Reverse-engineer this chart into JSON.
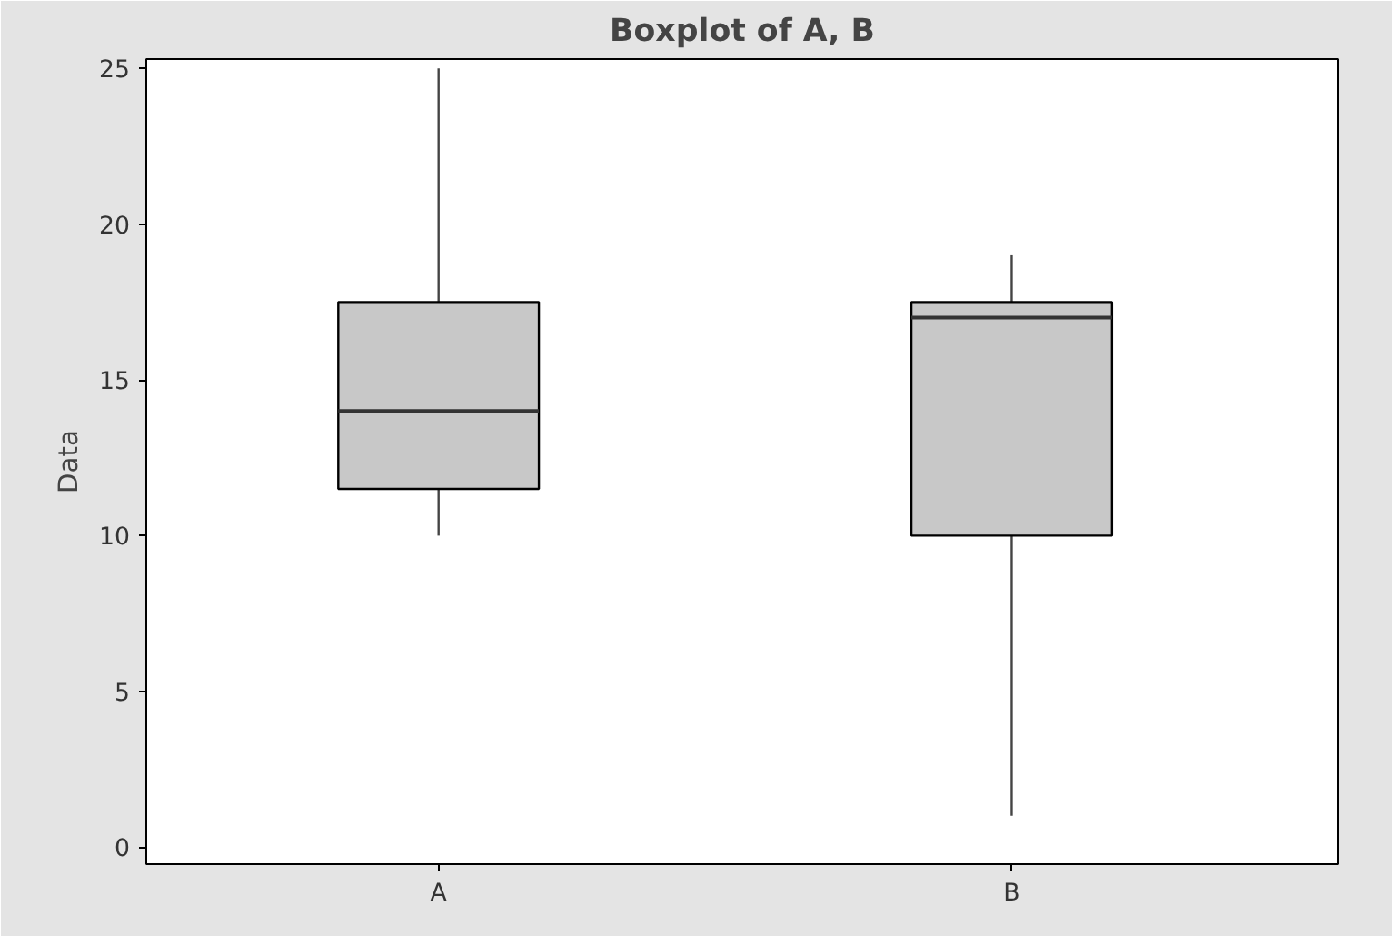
{
  "chart_data": {
    "type": "box",
    "title": "Boxplot of A, B",
    "ylabel": "Data",
    "categories": [
      "A",
      "B"
    ],
    "boxes": [
      {
        "low": 10,
        "q1": 11.5,
        "median": 14,
        "q3": 17.5,
        "high": 25
      },
      {
        "low": 1,
        "q1": 10,
        "median": 17,
        "q3": 17.5,
        "high": 19
      }
    ],
    "color": "#c8c8c8",
    "ylim": [
      -0.55,
      25.3
    ],
    "yticks": [
      0,
      5,
      10,
      15,
      20,
      25
    ],
    "grid": false
  }
}
